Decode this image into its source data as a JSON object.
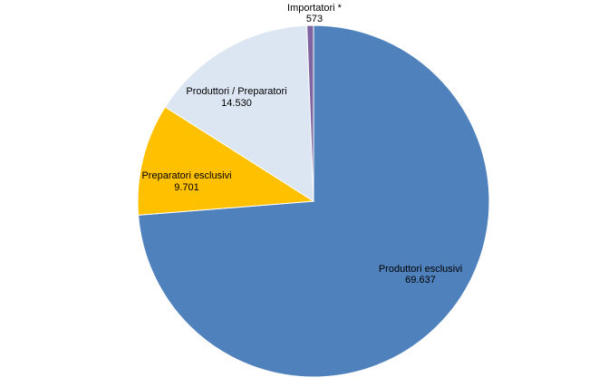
{
  "chart_data": {
    "type": "pie",
    "title": "",
    "legend": "none",
    "slices": [
      {
        "label": "Produttori esclusivi",
        "value_text": "69.637",
        "value": 69637,
        "color": "#4f81bd"
      },
      {
        "label": "Preparatori esclusivi",
        "value_text": "9.701",
        "value": 9701,
        "color": "#ffc000"
      },
      {
        "label": "Produttori / Preparatori",
        "value_text": "14.530",
        "value": 14530,
        "color": "#dce6f2"
      },
      {
        "label": "Importatori *",
        "value_text": "573",
        "value": 573,
        "color": "#8064a2"
      }
    ]
  }
}
